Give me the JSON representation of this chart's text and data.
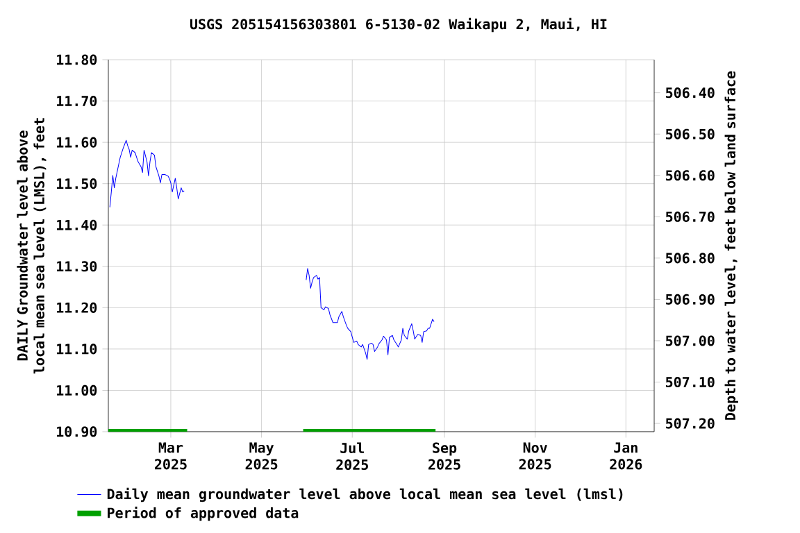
{
  "chart_data": {
    "type": "line",
    "title": "USGS 205154156303801 6-5130-02 Waikapu 2, Maui, HI",
    "ylabel": "DAILY Groundwater level above local mean sea level (LMSL), feet",
    "y2label": "Depth to water level, feet below land surface",
    "xlim": [
      "2025-01-18",
      "2026-01-20"
    ],
    "xticks": [
      {
        "value": "2025-03-01",
        "label": "Mar 2025"
      },
      {
        "value": "2025-05-01",
        "label": "May 2025"
      },
      {
        "value": "2025-07-01",
        "label": "Jul 2025"
      },
      {
        "value": "2025-09-01",
        "label": "Sep 2025"
      },
      {
        "value": "2025-11-01",
        "label": "Nov 2025"
      },
      {
        "value": "2026-01-01",
        "label": "Jan 2026"
      }
    ],
    "ylim": [
      10.9,
      11.8
    ],
    "yticks": [
      {
        "value": 10.9,
        "label": "10.90"
      },
      {
        "value": 11.0,
        "label": "11.00"
      },
      {
        "value": 11.1,
        "label": "11.10"
      },
      {
        "value": 11.2,
        "label": "11.20"
      },
      {
        "value": 11.3,
        "label": "11.30"
      },
      {
        "value": 11.4,
        "label": "11.40"
      },
      {
        "value": 11.5,
        "label": "11.50"
      },
      {
        "value": 11.6,
        "label": "11.60"
      },
      {
        "value": 11.7,
        "label": "11.70"
      },
      {
        "value": 11.8,
        "label": "11.80"
      }
    ],
    "y2lim": [
      507.22,
      506.32
    ],
    "y2ticks": [
      {
        "value": 506.4,
        "label": "506.40"
      },
      {
        "value": 506.5,
        "label": "506.50"
      },
      {
        "value": 506.6,
        "label": "506.60"
      },
      {
        "value": 506.7,
        "label": "506.70"
      },
      {
        "value": 506.8,
        "label": "506.80"
      },
      {
        "value": 506.9,
        "label": "506.90"
      },
      {
        "value": 507.0,
        "label": "507.00"
      },
      {
        "value": 507.1,
        "label": "507.10"
      },
      {
        "value": 507.2,
        "label": "507.20"
      }
    ],
    "grid": true,
    "legend": "bottom",
    "marker": "none",
    "line_style": "solid",
    "series": [
      {
        "name": "Daily mean groundwater level above local mean sea level (lmsl)",
        "color": "#0000ff",
        "x": [
          "2025-01-19",
          "2025-01-20",
          "2025-01-21",
          "2025-01-22",
          "2025-01-23",
          "2025-01-25",
          "2025-01-26",
          "2025-01-28",
          "2025-01-30",
          "2025-01-31",
          "2025-02-01",
          "2025-02-02",
          "2025-02-03",
          "2025-02-05",
          "2025-02-06",
          "2025-02-07",
          "2025-02-09",
          "2025-02-10",
          "2025-02-11",
          "2025-02-13",
          "2025-02-14",
          "2025-02-15",
          "2025-02-16",
          "2025-02-18",
          "2025-02-19",
          "2025-02-21",
          "2025-02-22",
          "2025-02-23",
          "2025-02-25",
          "2025-02-27",
          "2025-02-28",
          "2025-03-01",
          "2025-03-02",
          "2025-03-04",
          "2025-03-05",
          "2025-03-06",
          "2025-03-08",
          "2025-03-09",
          "2025-03-10",
          "2025-04-15",
          "2025-05-31",
          "2025-06-01",
          "2025-06-02",
          "2025-06-03",
          "2025-06-04",
          "2025-06-05",
          "2025-06-07",
          "2025-06-08",
          "2025-06-09",
          "2025-06-10",
          "2025-06-12",
          "2025-06-13",
          "2025-06-15",
          "2025-06-16",
          "2025-06-18",
          "2025-06-21",
          "2025-06-22",
          "2025-06-24",
          "2025-06-25",
          "2025-06-27",
          "2025-06-28",
          "2025-06-30",
          "2025-07-02",
          "2025-07-04",
          "2025-07-05",
          "2025-07-07",
          "2025-07-08",
          "2025-07-10",
          "2025-07-11",
          "2025-07-12",
          "2025-07-14",
          "2025-07-15",
          "2025-07-16",
          "2025-07-18",
          "2025-07-19",
          "2025-07-21",
          "2025-07-22",
          "2025-07-24",
          "2025-07-25",
          "2025-07-26",
          "2025-07-28",
          "2025-07-29",
          "2025-07-31",
          "2025-08-01",
          "2025-08-03",
          "2025-08-04",
          "2025-08-05",
          "2025-08-07",
          "2025-08-08",
          "2025-08-10",
          "2025-08-11",
          "2025-08-12",
          "2025-08-14",
          "2025-08-16",
          "2025-08-17",
          "2025-08-18",
          "2025-08-20",
          "2025-08-21",
          "2025-08-22",
          "2025-08-24",
          "2025-08-25"
        ],
        "values": [
          11.443,
          11.48,
          11.52,
          11.49,
          11.513,
          11.547,
          11.564,
          11.586,
          11.605,
          11.592,
          11.583,
          11.564,
          11.581,
          11.575,
          11.564,
          11.553,
          11.541,
          11.527,
          11.581,
          11.553,
          11.519,
          11.553,
          11.575,
          11.569,
          11.541,
          11.519,
          11.502,
          11.522,
          11.522,
          11.519,
          11.513,
          11.502,
          11.48,
          11.513,
          11.49,
          11.463,
          11.49,
          11.48,
          11.483,
          null,
          11.267,
          11.295,
          11.278,
          11.247,
          11.262,
          11.273,
          11.278,
          11.269,
          11.273,
          11.2,
          11.195,
          11.202,
          11.198,
          11.183,
          11.164,
          11.164,
          11.178,
          11.191,
          11.178,
          11.158,
          11.15,
          11.142,
          11.116,
          11.119,
          11.111,
          11.105,
          11.111,
          11.09,
          11.075,
          11.111,
          11.114,
          11.111,
          11.094,
          11.105,
          11.113,
          11.122,
          11.131,
          11.122,
          11.086,
          11.128,
          11.133,
          11.122,
          11.111,
          11.105,
          11.122,
          11.15,
          11.133,
          11.124,
          11.144,
          11.161,
          11.144,
          11.124,
          11.135,
          11.133,
          11.116,
          11.142,
          11.144,
          11.15,
          11.15,
          11.172,
          11.166
        ]
      },
      {
        "name": "Period of approved data",
        "color": "#00a000",
        "x": [
          "2025-01-18",
          "2025-03-12",
          "2025-04-15",
          "2025-05-29",
          "2025-08-26"
        ],
        "values": [
          10.9,
          10.9,
          null,
          10.9,
          10.9
        ]
      }
    ]
  }
}
